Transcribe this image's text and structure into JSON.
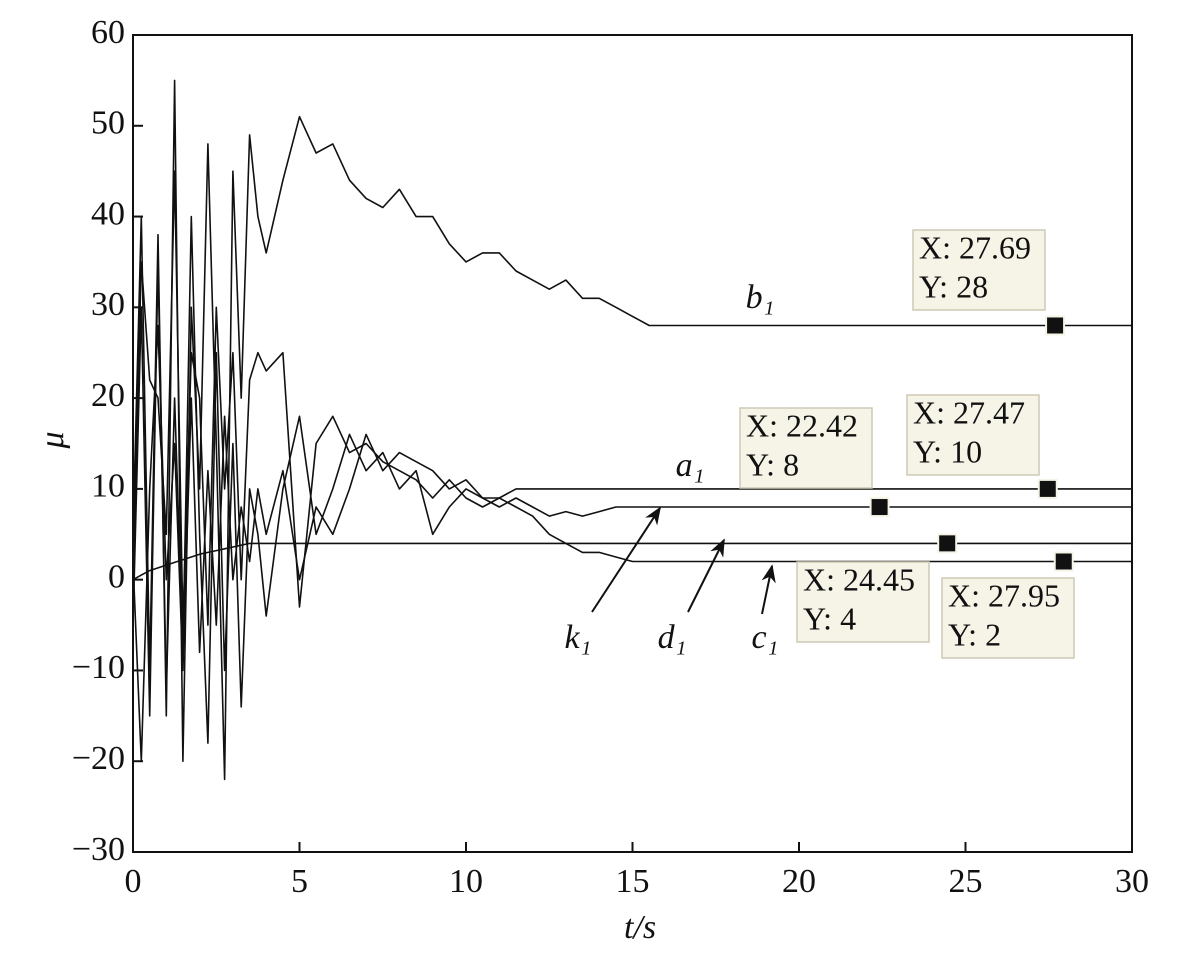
{
  "chart_data": {
    "type": "line",
    "x_label": "t/s",
    "y_label": "μ",
    "x": [
      0,
      0.25,
      0.5,
      0.75,
      1,
      1.25,
      1.5,
      1.75,
      2,
      2.25,
      2.5,
      2.75,
      3,
      3.25,
      3.5,
      3.75,
      4,
      4.5,
      5,
      5.5,
      6,
      6.5,
      7,
      7.5,
      8,
      8.5,
      9,
      9.5,
      10,
      10.5,
      11,
      11.5,
      12,
      12.5,
      13,
      13.5,
      14,
      14.5,
      15,
      15.5,
      16,
      18,
      20,
      22,
      24,
      26,
      28,
      30
    ],
    "series": [
      {
        "name": "b₁",
        "color": "#111111",
        "values": [
          5,
          40,
          -10,
          38,
          -15,
          55,
          -20,
          30,
          10,
          48,
          15,
          -22,
          45,
          20,
          49,
          40,
          36,
          44,
          51,
          47,
          48,
          44,
          42,
          41,
          43,
          40,
          40,
          37,
          35,
          36,
          36,
          34,
          33,
          32,
          33,
          31,
          31,
          30,
          29,
          28,
          28,
          28,
          28,
          28,
          28,
          28,
          28,
          28
        ]
      },
      {
        "name": "a₁",
        "color": "#111111",
        "values": [
          0,
          35,
          22,
          20,
          5,
          45,
          -5,
          25,
          20,
          -5,
          30,
          10,
          25,
          0,
          22,
          25,
          23,
          25,
          -3,
          15,
          18,
          14,
          15,
          13,
          12,
          11,
          9,
          11,
          9,
          8,
          9,
          10,
          10,
          10,
          10,
          10,
          10,
          10,
          10,
          10,
          10,
          10,
          10,
          10,
          10,
          10,
          10,
          10
        ]
      },
      {
        "name": "k₁",
        "color": "#111111",
        "values": [
          -5,
          30,
          -15,
          35,
          -12,
          20,
          -8,
          40,
          5,
          -18,
          25,
          -10,
          15,
          -14,
          10,
          5,
          -4,
          10,
          18,
          5,
          10,
          16,
          12,
          14,
          10,
          12,
          5,
          8,
          10,
          9,
          8,
          9,
          8,
          7,
          7.5,
          7,
          7.5,
          8,
          8,
          8,
          8,
          8,
          8,
          8,
          8,
          8,
          8,
          8
        ]
      },
      {
        "name": "d₁",
        "color": "#111111",
        "values": [
          0,
          0.5,
          1,
          1.3,
          1.6,
          1.9,
          2.2,
          2.5,
          2.8,
          3,
          3.2,
          3.4,
          3.6,
          3.8,
          4,
          4,
          4,
          4,
          4,
          4,
          4,
          4,
          4,
          4,
          4,
          4,
          4,
          4,
          4,
          4,
          4,
          4,
          4,
          4,
          4,
          4,
          4,
          4,
          4,
          4,
          4,
          4,
          4,
          4,
          4,
          4,
          4,
          4
        ]
      },
      {
        "name": "c₁",
        "color": "#111111",
        "values": [
          2,
          -20,
          10,
          28,
          0,
          15,
          -10,
          20,
          -8,
          12,
          -5,
          18,
          0,
          8,
          2,
          10,
          5,
          12,
          0,
          8,
          5,
          10,
          16,
          12,
          14,
          13,
          12,
          10,
          11,
          9,
          9,
          8,
          7,
          5,
          4,
          3,
          3,
          2.5,
          2,
          2,
          2,
          2,
          2,
          2,
          2,
          2,
          2,
          2
        ]
      }
    ],
    "datatips": [
      {
        "x": 27.69,
        "y": 28,
        "x_label": "X: 27.69",
        "y_label": "Y: 28"
      },
      {
        "x": 22.42,
        "y": 8,
        "x_label": "X: 22.42",
        "y_label": "Y: 8"
      },
      {
        "x": 27.47,
        "y": 10,
        "x_label": "X: 27.47",
        "y_label": "Y: 10"
      },
      {
        "x": 24.45,
        "y": 4,
        "x_label": "X: 24.45",
        "y_label": "Y: 4"
      },
      {
        "x": 27.95,
        "y": 2,
        "x_label": "X: 27.95",
        "y_label": "Y: 2"
      }
    ],
    "xlim": [
      0,
      30
    ],
    "xticks": [
      0,
      5,
      10,
      15,
      20,
      25,
      30
    ],
    "ylim": [
      -30,
      60
    ],
    "yticks": [
      {
        "value": -30,
        "label": "−30"
      },
      {
        "value": -20,
        "label": "−20"
      },
      {
        "value": -10,
        "label": "−10"
      },
      0,
      10,
      20,
      30,
      40,
      50,
      60
    ]
  }
}
